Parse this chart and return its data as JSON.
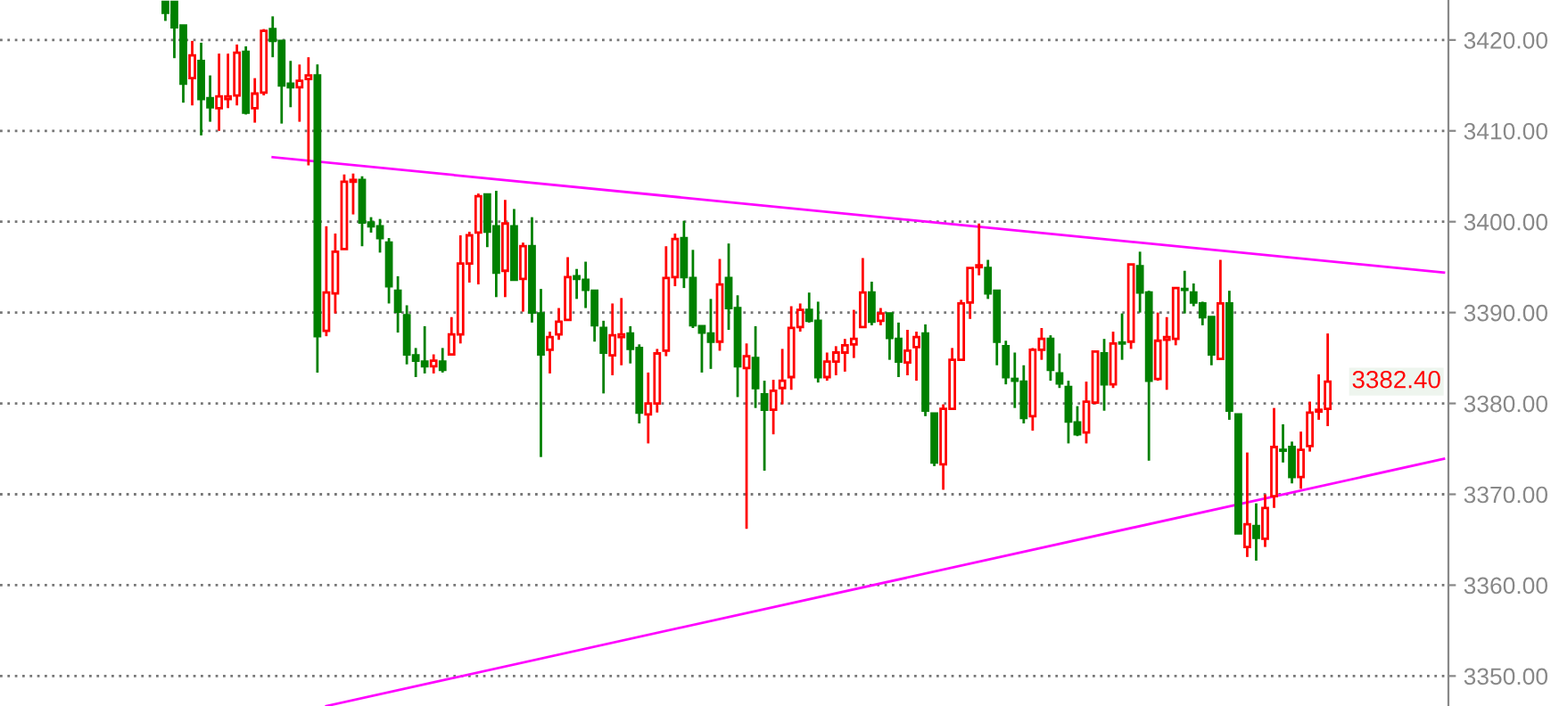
{
  "chart_data": {
    "type": "candlestick",
    "categories": [
      null,
      null,
      null,
      null,
      null,
      null,
      null,
      null,
      null,
      null,
      null,
      null,
      null,
      null,
      null,
      null,
      null,
      null,
      null,
      null,
      null,
      null,
      null,
      null,
      null,
      null,
      null,
      null,
      null,
      null,
      null,
      null,
      null,
      null,
      null,
      null,
      null,
      null,
      null,
      null,
      null,
      null,
      null,
      null,
      null,
      null,
      null,
      null,
      null,
      null,
      null,
      null,
      null,
      null,
      null,
      null,
      null,
      null,
      null,
      null,
      null,
      null,
      null,
      null,
      null,
      null,
      null,
      null,
      null,
      null,
      null,
      null,
      null,
      null,
      null,
      null,
      null,
      null,
      null,
      null,
      null,
      null,
      null,
      null,
      null,
      null,
      null,
      null,
      null,
      null,
      null,
      null,
      null,
      null,
      null,
      null,
      null,
      null,
      null,
      null,
      null,
      null,
      null,
      null,
      null,
      null,
      null,
      null,
      null,
      null,
      null,
      null,
      null,
      null,
      null,
      null,
      null,
      null,
      null,
      null,
      null,
      null,
      null,
      null,
      null,
      null,
      null,
      null,
      null,
      null,
      null,
      null,
      null,
      null,
      null,
      null,
      null,
      null,
      null,
      null,
      null,
      null,
      null,
      null,
      null,
      null,
      null,
      null,
      null,
      null,
      null,
      null,
      null,
      null,
      null,
      null,
      null,
      null,
      null,
      null,
      null,
      null
    ],
    "ohlc": [
      null,
      null,
      null,
      null,
      null,
      null,
      null,
      null,
      null,
      null,
      null,
      null,
      null,
      null,
      null,
      null,
      null,
      null,
      [
        3424.2,
        3424.3,
        3422.1,
        3423.0
      ],
      [
        3424.2,
        3424.3,
        3418.0,
        3421.4
      ],
      [
        3421.6,
        3421.6,
        3413.1,
        3415.2
      ],
      [
        3415.8,
        3419.9,
        3412.8,
        3418.3
      ],
      [
        3417.7,
        3419.7,
        3409.5,
        3413.5
      ],
      [
        3413.6,
        3416.1,
        3411.0,
        3412.6
      ],
      [
        3412.5,
        3418.5,
        3410.0,
        3413.8
      ],
      [
        3413.5,
        3418.5,
        3412.5,
        3413.8
      ],
      [
        3413.9,
        3419.5,
        3412.8,
        3418.6
      ],
      [
        3418.7,
        3419.3,
        3411.8,
        3412.0
      ],
      [
        3412.5,
        3415.8,
        3410.9,
        3414.1
      ],
      [
        3414.2,
        3421.2,
        3413.9,
        3421.0
      ],
      [
        3421.2,
        3422.6,
        3418.1,
        3419.9
      ],
      [
        3419.9,
        3419.9,
        3410.8,
        3415.0
      ],
      [
        3415.2,
        3417.7,
        3412.6,
        3414.8
      ],
      [
        3414.8,
        3417.3,
        3411.0,
        3415.5
      ],
      [
        3415.7,
        3418.1,
        3406.2,
        3416.1
      ],
      [
        3416.1,
        3417.3,
        3383.4,
        3387.4
      ],
      [
        3388.0,
        3399.5,
        3387.4,
        3392.2
      ],
      [
        3392.1,
        3398.7,
        3389.9,
        3396.7
      ],
      [
        3397.0,
        3405.2,
        3397.0,
        3404.4
      ],
      [
        3404.4,
        3405.3,
        3400.8,
        3404.6
      ],
      [
        3404.6,
        3405.0,
        3397.3,
        3399.9
      ],
      [
        3399.9,
        3400.5,
        3398.8,
        3399.5
      ],
      [
        3399.5,
        3400.3,
        3396.6,
        3398.2
      ],
      [
        3397.7,
        3398.2,
        3391.0,
        3392.9
      ],
      [
        3392.4,
        3394.0,
        3387.8,
        3390.1
      ],
      [
        3389.7,
        3390.8,
        3384.3,
        3385.4
      ],
      [
        3385.3,
        3386.1,
        3382.9,
        3384.7
      ],
      [
        3384.6,
        3388.5,
        3383.3,
        3384.1
      ],
      [
        3384.1,
        3385.4,
        3383.3,
        3384.7
      ],
      [
        3384.6,
        3386.1,
        3383.4,
        3383.7
      ],
      [
        3385.4,
        3389.5,
        3385.4,
        3387.6
      ],
      [
        3387.6,
        3398.5,
        3386.6,
        3395.4
      ],
      [
        3395.4,
        3398.9,
        3393.3,
        3398.5
      ],
      [
        3398.8,
        3403.1,
        3393.1,
        3402.8
      ],
      [
        3403.0,
        3403.0,
        3397.2,
        3398.9
      ],
      [
        3399.5,
        3403.4,
        3391.7,
        3394.4
      ],
      [
        3394.6,
        3402.4,
        3391.7,
        3399.8
      ],
      [
        3399.5,
        3401.4,
        3393.5,
        3393.6
      ],
      [
        3393.7,
        3397.7,
        3390.1,
        3397.3
      ],
      [
        3397.3,
        3400.5,
        3388.9,
        3390.0
      ],
      [
        3389.9,
        3392.6,
        3374.1,
        3385.4
      ],
      [
        3385.9,
        3387.9,
        3383.3,
        3387.3
      ],
      [
        3387.6,
        3390.5,
        3387.0,
        3389.0
      ],
      [
        3389.2,
        3396.1,
        3389.2,
        3393.9
      ],
      [
        3394.0,
        3394.8,
        3391.5,
        3393.7
      ],
      [
        3393.6,
        3395.6,
        3390.5,
        3392.5
      ],
      [
        3392.4,
        3392.4,
        3386.8,
        3388.6
      ],
      [
        3388.3,
        3389.1,
        3381.1,
        3385.6
      ],
      [
        3385.3,
        3391.0,
        3383.1,
        3387.5
      ],
      [
        3387.3,
        3391.6,
        3384.2,
        3387.6
      ],
      [
        3387.7,
        3388.5,
        3384.4,
        3386.0
      ],
      [
        3386.1,
        3386.5,
        3377.8,
        3379.0
      ],
      [
        3378.8,
        3383.4,
        3375.6,
        3380.0
      ],
      [
        3380.0,
        3386.0,
        3379.0,
        3385.5
      ],
      [
        3385.8,
        3397.3,
        3385.2,
        3393.8
      ],
      [
        3393.9,
        3398.7,
        3392.9,
        3398.1
      ],
      [
        3398.2,
        3400.1,
        3392.7,
        3393.9
      ],
      [
        3393.8,
        3396.9,
        3388.3,
        3388.6
      ],
      [
        3388.5,
        3388.5,
        3383.4,
        3387.8
      ],
      [
        3387.7,
        3391.5,
        3383.8,
        3386.8
      ],
      [
        3386.8,
        3395.9,
        3385.8,
        3393.1
      ],
      [
        3393.8,
        3397.6,
        3388.1,
        3390.5
      ],
      [
        3390.5,
        3391.9,
        3380.7,
        3384.1
      ],
      [
        3383.9,
        3386.6,
        3366.2,
        3385.2
      ],
      [
        3385.0,
        3388.5,
        3379.5,
        3381.7
      ],
      [
        3381.0,
        3382.5,
        3372.6,
        3379.3
      ],
      [
        3379.3,
        3382.6,
        3376.6,
        3381.4
      ],
      [
        3381.7,
        3386.0,
        3379.9,
        3382.5
      ],
      [
        3382.9,
        3390.7,
        3381.5,
        3388.3
      ],
      [
        3388.4,
        3391.0,
        3387.9,
        3390.3
      ],
      [
        3390.3,
        3392.2,
        3388.9,
        3389.1
      ],
      [
        3389.1,
        3391.2,
        3382.3,
        3382.9
      ],
      [
        3382.9,
        3385.6,
        3382.5,
        3384.6
      ],
      [
        3384.6,
        3386.3,
        3383.1,
        3385.6
      ],
      [
        3385.6,
        3387.1,
        3383.5,
        3386.4
      ],
      [
        3386.5,
        3390.3,
        3385.0,
        3387.1
      ],
      [
        3388.4,
        3396.0,
        3388.4,
        3392.2
      ],
      [
        3392.2,
        3393.4,
        3388.6,
        3389.0
      ],
      [
        3389.1,
        3390.5,
        3388.6,
        3389.9
      ],
      [
        3389.9,
        3389.9,
        3384.8,
        3387.2
      ],
      [
        3387.1,
        3388.9,
        3382.9,
        3384.6
      ],
      [
        3384.5,
        3388.1,
        3383.1,
        3385.8
      ],
      [
        3386.2,
        3387.9,
        3382.5,
        3387.3
      ],
      [
        3387.7,
        3388.7,
        3378.6,
        3379.2
      ],
      [
        3378.9,
        3378.9,
        3373.1,
        3373.5
      ],
      [
        3373.3,
        3379.9,
        3370.5,
        3379.4
      ],
      [
        3379.4,
        3386.1,
        3379.4,
        3384.8
      ],
      [
        3384.8,
        3391.4,
        3384.8,
        3391.0
      ],
      [
        3391.1,
        3394.9,
        3389.3,
        3394.9
      ],
      [
        3395.0,
        3399.8,
        3394.1,
        3395.2
      ],
      [
        3394.9,
        3395.8,
        3391.5,
        3392.1
      ],
      [
        3392.4,
        3392.4,
        3384.2,
        3386.8
      ],
      [
        3386.3,
        3386.9,
        3382.1,
        3382.9
      ],
      [
        3382.7,
        3385.6,
        3379.5,
        3382.5
      ],
      [
        3382.4,
        3384.2,
        3377.8,
        3378.4
      ],
      [
        3378.6,
        3386.1,
        3377.0,
        3385.9
      ],
      [
        3385.9,
        3388.3,
        3384.8,
        3387.1
      ],
      [
        3387.1,
        3387.5,
        3382.5,
        3383.7
      ],
      [
        3383.3,
        3385.5,
        3381.7,
        3382.2
      ],
      [
        3381.8,
        3382.5,
        3375.6,
        3378.0
      ],
      [
        3377.9,
        3379.7,
        3376.4,
        3376.6
      ],
      [
        3376.8,
        3382.4,
        3375.6,
        3380.2
      ],
      [
        3380.1,
        3385.8,
        3379.9,
        3385.7
      ],
      [
        3385.5,
        3387.1,
        3379.2,
        3382.1
      ],
      [
        3382.1,
        3387.9,
        3381.7,
        3386.6
      ],
      [
        3386.7,
        3389.9,
        3384.8,
        3386.6
      ],
      [
        3386.8,
        3395.3,
        3386.0,
        3395.3
      ],
      [
        3395.1,
        3396.7,
        3390.0,
        3392.2
      ],
      [
        3392.2,
        3392.4,
        3373.7,
        3382.5
      ],
      [
        3382.7,
        3390.0,
        3382.5,
        3386.9
      ],
      [
        3387.0,
        3389.5,
        3381.5,
        3387.3
      ],
      [
        3387.1,
        3392.7,
        3386.4,
        3392.7
      ],
      [
        3392.6,
        3394.6,
        3389.9,
        3392.5
      ],
      [
        3392.2,
        3393.2,
        3390.7,
        3391.1
      ],
      [
        3391.0,
        3391.2,
        3388.6,
        3389.5
      ],
      [
        3389.5,
        3389.5,
        3384.2,
        3385.4
      ],
      [
        3384.9,
        3395.8,
        3384.9,
        3391.0
      ],
      [
        3391.0,
        3392.4,
        3378.2,
        3379.2
      ],
      [
        3378.8,
        3378.8,
        3365.7,
        3365.7
      ],
      [
        3364.2,
        3374.6,
        3363.1,
        3366.7
      ],
      [
        3366.5,
        3369.0,
        3362.7,
        3365.2
      ],
      [
        3365.1,
        3370.0,
        3364.2,
        3368.5
      ],
      [
        3369.8,
        3379.5,
        3368.5,
        3375.2
      ],
      [
        3374.9,
        3377.7,
        3373.5,
        3374.8
      ],
      [
        3375.2,
        3375.8,
        3371.2,
        3371.9
      ],
      [
        3371.9,
        3376.9,
        3370.6,
        3374.9
      ],
      [
        3375.3,
        3380.2,
        3374.7,
        3379.0
      ],
      [
        3379.1,
        3383.2,
        3378.2,
        3379.3
      ],
      [
        3379.4,
        3387.7,
        3377.5,
        3382.4
      ],
      null,
      null,
      null,
      null,
      null,
      null,
      null,
      null,
      null,
      null,
      null,
      null,
      null
    ],
    "colors": [
      null,
      null,
      null,
      null,
      null,
      null,
      null,
      null,
      null,
      null,
      null,
      null,
      null,
      null,
      null,
      null,
      null,
      null,
      "#008000",
      "#008000",
      "#008000",
      "#ff0000",
      "#008000",
      "#008000",
      "#ff0000",
      "#ff0000",
      "#ff0000",
      "#008000",
      "#ff0000",
      "#ff0000",
      "#008000",
      "#008000",
      "#008000",
      "#ff0000",
      "#ff0000",
      "#008000",
      "#ff0000",
      "#ff0000",
      "#ff0000",
      "#ff0000",
      "#008000",
      "#008000",
      "#008000",
      "#008000",
      "#008000",
      "#008000",
      "#008000",
      "#008000",
      "#ff0000",
      "#008000",
      "#ff0000",
      "#ff0000",
      "#ff0000",
      "#ff0000",
      "#008000",
      "#008000",
      "#ff0000",
      "#008000",
      "#ff0000",
      "#008000",
      "#008000",
      "#ff0000",
      "#ff0000",
      "#ff0000",
      "#008000",
      "#008000",
      "#008000",
      "#008000",
      "#ff0000",
      "#ff0000",
      "#008000",
      "#008000",
      "#ff0000",
      "#ff0000",
      "#ff0000",
      "#ff0000",
      "#008000",
      "#008000",
      "#008000",
      "#008000",
      "#ff0000",
      "#008000",
      "#008000",
      "#ff0000",
      "#008000",
      "#008000",
      "#ff0000",
      "#ff0000",
      "#ff0000",
      "#ff0000",
      "#008000",
      "#008000",
      "#ff0000",
      "#ff0000",
      "#ff0000",
      "#ff0000",
      "#ff0000",
      "#008000",
      "#ff0000",
      "#008000",
      "#008000",
      "#ff0000",
      "#ff0000",
      "#008000",
      "#008000",
      "#ff0000",
      "#ff0000",
      "#ff0000",
      "#ff0000",
      "#ff0000",
      "#008000",
      "#008000",
      "#008000",
      "#008000",
      "#008000",
      "#ff0000",
      "#ff0000",
      "#008000",
      "#008000",
      "#008000",
      "#008000",
      "#ff0000",
      "#ff0000",
      "#008000",
      "#ff0000",
      "#008000",
      "#ff0000",
      "#008000",
      "#008000",
      "#ff0000",
      "#ff0000",
      "#ff0000",
      "#008000",
      "#008000",
      "#008000",
      "#008000",
      "#ff0000",
      "#008000",
      "#008000",
      "#ff0000",
      "#008000",
      "#ff0000",
      "#ff0000",
      "#008000",
      "#008000",
      "#ff0000",
      "#ff0000",
      "#ff0000",
      "#ff0000",
      null,
      null,
      null,
      null,
      null,
      null,
      null,
      null,
      null,
      null,
      null,
      null,
      null
    ],
    "series": [
      {
        "type": "line",
        "color": "#ff00ff",
        "values": [
          null,
          null,
          null,
          null,
          null,
          null,
          null,
          null,
          null,
          null,
          null,
          null,
          null,
          null,
          null,
          null,
          null,
          null,
          null,
          null,
          null,
          null,
          null,
          null,
          null,
          null,
          null,
          null,
          null,
          null,
          3407.1,
          null,
          null,
          null,
          null,
          null,
          null,
          null,
          null,
          null,
          null,
          null,
          null,
          null,
          null,
          null,
          null,
          null,
          null,
          null,
          null,
          null,
          null,
          null,
          null,
          null,
          null,
          null,
          null,
          null,
          null,
          null,
          null,
          null,
          null,
          null,
          null,
          null,
          null,
          null,
          null,
          null,
          null,
          null,
          null,
          null,
          null,
          null,
          null,
          null,
          null,
          null,
          null,
          null,
          null,
          null,
          null,
          null,
          null,
          null,
          null,
          null,
          null,
          null,
          null,
          null,
          null,
          null,
          null,
          null,
          null,
          null,
          null,
          null,
          null,
          null,
          null,
          null,
          null,
          null,
          null,
          null,
          null,
          null,
          null,
          null,
          null,
          null,
          null,
          null,
          null,
          null,
          null,
          null,
          null,
          null,
          null,
          null,
          null,
          null,
          null,
          null,
          null,
          null,
          null,
          null,
          null,
          null,
          null,
          null,
          null,
          null,
          null,
          null,
          null,
          null,
          null,
          null,
          null,
          null,
          null,
          null,
          null,
          null,
          null,
          null,
          null,
          null,
          null,
          null,
          null,
          3394.4
        ]
      },
      {
        "type": "line",
        "color": "#ff00ff",
        "values": [
          null,
          null,
          null,
          null,
          null,
          null,
          null,
          null,
          null,
          null,
          null,
          null,
          null,
          null,
          null,
          null,
          null,
          null,
          null,
          null,
          null,
          null,
          null,
          null,
          null,
          null,
          null,
          null,
          null,
          null,
          null,
          null,
          null,
          null,
          null,
          null,
          3346.7,
          null,
          null,
          null,
          null,
          null,
          null,
          null,
          null,
          null,
          null,
          null,
          null,
          null,
          null,
          null,
          null,
          null,
          null,
          null,
          null,
          null,
          null,
          null,
          null,
          null,
          null,
          null,
          null,
          null,
          null,
          null,
          null,
          null,
          null,
          null,
          null,
          null,
          null,
          null,
          null,
          null,
          null,
          null,
          null,
          null,
          null,
          null,
          null,
          null,
          null,
          null,
          null,
          null,
          null,
          null,
          null,
          null,
          null,
          null,
          null,
          null,
          null,
          null,
          null,
          null,
          null,
          null,
          null,
          null,
          null,
          null,
          null,
          null,
          null,
          null,
          null,
          null,
          null,
          null,
          null,
          null,
          null,
          null,
          null,
          null,
          null,
          null,
          null,
          null,
          null,
          null,
          null,
          null,
          null,
          null,
          null,
          null,
          null,
          null,
          null,
          null,
          null,
          null,
          null,
          null,
          null,
          null,
          null,
          null,
          null,
          null,
          null,
          null,
          null,
          null,
          null,
          null,
          null,
          null,
          null,
          null,
          null,
          null,
          null,
          3373.9
        ]
      }
    ],
    "ylim": [
      3346.7,
      3424.4
    ],
    "yticks": [
      {
        "value": 3350,
        "label": "3350.00"
      },
      {
        "value": 3360,
        "label": "3360.00"
      },
      {
        "value": 3370,
        "label": "3370.00"
      },
      {
        "value": 3380,
        "label": "3380.00"
      },
      {
        "value": 3390,
        "label": "3390.00"
      },
      {
        "value": 3400,
        "label": "3400.00"
      },
      {
        "value": 3410,
        "label": "3410.00"
      },
      {
        "value": 3420,
        "label": "3420.00"
      }
    ],
    "grid": "y",
    "tick_labels": "y",
    "annotations": [
      "3382.40"
    ]
  }
}
